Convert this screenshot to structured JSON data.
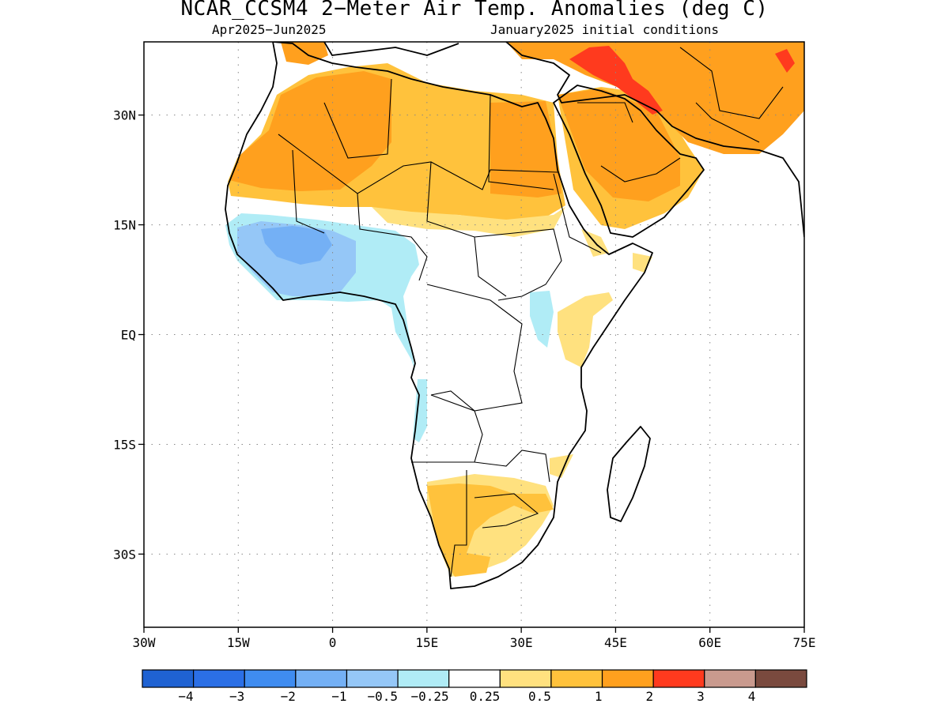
{
  "title": "NCAR_CCSM4 2−Meter Air Temp. Anomalies (deg C)",
  "subtitle_left": "Apr2025−Jun2025",
  "subtitle_right": "January2025 initial conditions",
  "map": {
    "lon_range": [
      -30,
      75
    ],
    "lat_range": [
      -40,
      40
    ],
    "lon_ticks": [
      {
        "value": -30,
        "label": "30W"
      },
      {
        "value": -15,
        "label": "15W"
      },
      {
        "value": 0,
        "label": "0"
      },
      {
        "value": 15,
        "label": "15E"
      },
      {
        "value": 30,
        "label": "30E"
      },
      {
        "value": 45,
        "label": "45E"
      },
      {
        "value": 60,
        "label": "60E"
      },
      {
        "value": 75,
        "label": "75E"
      }
    ],
    "lat_ticks": [
      {
        "value": 30,
        "label": "30N"
      },
      {
        "value": 15,
        "label": "15N"
      },
      {
        "value": 0,
        "label": "EQ"
      },
      {
        "value": -15,
        "label": "15S"
      },
      {
        "value": -30,
        "label": "30S"
      }
    ],
    "grid": "dotted"
  },
  "colorbar": {
    "colors": [
      "#1f62d2",
      "#2b6fe6",
      "#3f8cf0",
      "#74b0f5",
      "#95c7f7",
      "#b0ecf6",
      "#ffffff",
      "#ffe17f",
      "#ffc23c",
      "#ffa01e",
      "#ff3a1e",
      "#c99a8e",
      "#7a4a3e"
    ],
    "labels": [
      "−4",
      "−3",
      "−2",
      "−1",
      "−0.5",
      "−0.25",
      "0.25",
      "0.5",
      "1",
      "2",
      "3",
      "4"
    ]
  },
  "anomaly_regions": [
    {
      "name": "sahara-warm",
      "level": "1"
    },
    {
      "name": "arabia-warm",
      "level": "1"
    },
    {
      "name": "iran-warm",
      "level": "1"
    },
    {
      "name": "mesopotamia-hot",
      "level": "2"
    },
    {
      "name": "sahel-warm",
      "level": "0.5"
    },
    {
      "name": "west-africa-cool",
      "level": "-0.5"
    },
    {
      "name": "guinea-cool",
      "level": "-0.25"
    },
    {
      "name": "east-africa-warm",
      "level": "0.25"
    },
    {
      "name": "southern-africa-warm",
      "level": "0.5"
    }
  ]
}
